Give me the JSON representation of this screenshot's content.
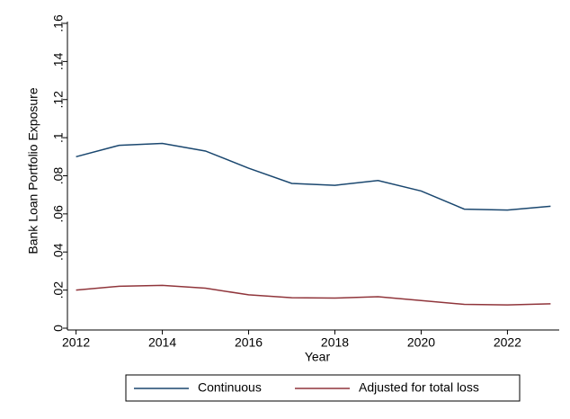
{
  "chart_data": {
    "type": "line",
    "x_label": "Year",
    "y_label": "Bank Loan Portfolio Exposure",
    "x": [
      2012,
      2013,
      2014,
      2015,
      2016,
      2017,
      2018,
      2019,
      2020,
      2021,
      2022,
      2023
    ],
    "series": [
      {
        "name": "Continuous",
        "color": "#1a476f",
        "values": [
          0.09,
          0.096,
          0.097,
          0.093,
          0.084,
          0.076,
          0.075,
          0.0775,
          0.072,
          0.0625,
          0.062,
          0.064
        ]
      },
      {
        "name": "Adjusted for total loss",
        "color": "#90353b",
        "values": [
          0.02,
          0.022,
          0.0225,
          0.021,
          0.0175,
          0.016,
          0.0158,
          0.0165,
          0.0145,
          0.0125,
          0.0122,
          0.0128
        ]
      }
    ],
    "xlim": [
      2011.8,
      2023.2
    ],
    "xticks": [
      2012,
      2014,
      2016,
      2018,
      2020,
      2022
    ],
    "ylim": [
      0,
      0.16
    ],
    "yticks": [
      0,
      {
        "value": 0.02,
        "label": ".02"
      },
      {
        "value": 0.04,
        "label": ".04"
      },
      {
        "value": 0.06,
        "label": ".06"
      },
      {
        "value": 0.08,
        "label": ".08"
      },
      {
        "value": 0.1,
        "label": ".1"
      },
      {
        "value": 0.12,
        "label": ".12"
      },
      {
        "value": 0.14,
        "label": ".14"
      },
      {
        "value": 0.16,
        "label": ".16"
      }
    ],
    "grid": false,
    "legend": "bottom"
  }
}
